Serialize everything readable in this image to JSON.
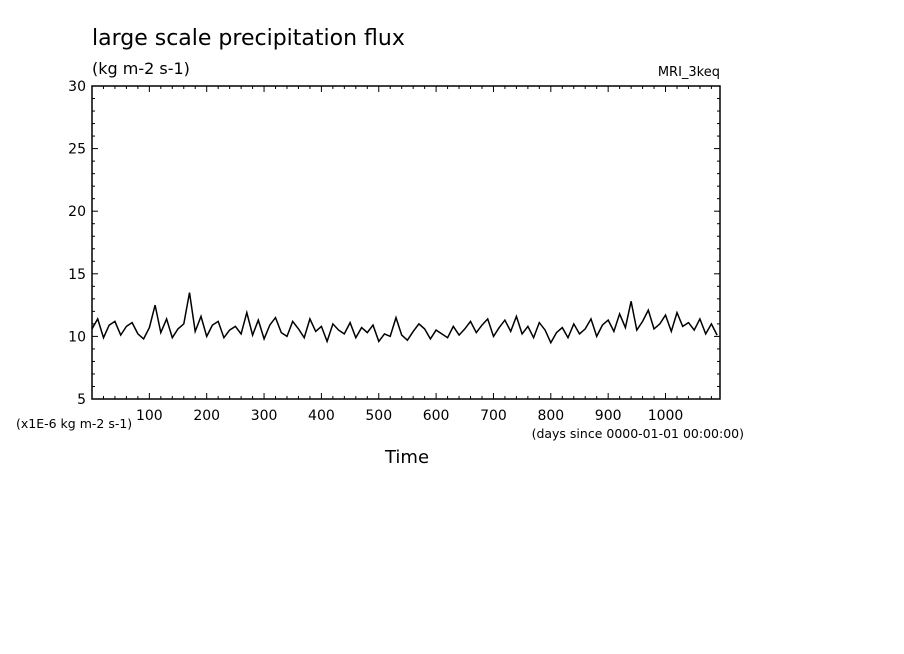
{
  "chart_data": {
    "type": "line",
    "title": "large scale precipitation flux",
    "subtitle": "(kg m-2 s-1)",
    "model": "MRI_3keq",
    "xlabel": "Time",
    "x_units": "(days since 0000-01-01 00:00:00)",
    "y_scale_note": "(x1E-6 kg m-2 s-1)",
    "xlim": [
      0,
      1095
    ],
    "ylim": [
      5,
      30
    ],
    "x_ticks": [
      100,
      200,
      300,
      400,
      500,
      600,
      700,
      800,
      900,
      1000
    ],
    "x_tick_labels": [
      "100",
      "200",
      "300",
      "400",
      "500",
      "600",
      "700",
      "800",
      "900",
      "1000"
    ],
    "y_ticks": [
      5,
      10,
      15,
      20,
      25,
      30
    ],
    "y_tick_labels": [
      "5",
      "10",
      "15",
      "20",
      "25",
      "30"
    ],
    "grid": false,
    "line_color": "#000000",
    "series": [
      {
        "x": [
          0,
          10,
          20,
          30,
          40,
          50,
          60,
          70,
          80,
          90,
          100,
          110,
          120,
          130,
          140,
          150,
          160,
          170,
          180,
          190,
          200,
          210,
          220,
          230,
          240,
          250,
          260,
          270,
          280,
          290,
          300,
          310,
          320,
          330,
          340,
          350,
          360,
          370,
          380,
          390,
          400,
          410,
          420,
          430,
          440,
          450,
          460,
          470,
          480,
          490,
          500,
          510,
          520,
          530,
          540,
          550,
          560,
          570,
          580,
          590,
          600,
          610,
          620,
          630,
          640,
          650,
          660,
          670,
          680,
          690,
          700,
          710,
          720,
          730,
          740,
          750,
          760,
          770,
          780,
          790,
          800,
          810,
          820,
          830,
          840,
          850,
          860,
          870,
          880,
          890,
          900,
          910,
          920,
          930,
          940,
          950,
          960,
          970,
          980,
          990,
          1000,
          1010,
          1020,
          1030,
          1040,
          1050,
          1060,
          1070,
          1080,
          1090
        ],
        "y": [
          10.6,
          11.4,
          9.9,
          10.9,
          11.2,
          10.1,
          10.8,
          11.1,
          10.2,
          9.8,
          10.7,
          12.5,
          10.3,
          11.4,
          9.9,
          10.6,
          11.0,
          13.5,
          10.4,
          11.6,
          10.0,
          10.9,
          11.2,
          9.9,
          10.5,
          10.8,
          10.2,
          11.9,
          10.1,
          11.3,
          9.8,
          10.9,
          11.5,
          10.3,
          10.0,
          11.2,
          10.6,
          9.9,
          11.4,
          10.4,
          10.8,
          9.6,
          11.0,
          10.5,
          10.2,
          11.1,
          9.9,
          10.7,
          10.3,
          10.9,
          9.6,
          10.2,
          10.0,
          11.5,
          10.1,
          9.7,
          10.4,
          11.0,
          10.6,
          9.8,
          10.5,
          10.2,
          9.9,
          10.8,
          10.1,
          10.6,
          11.2,
          10.3,
          10.9,
          11.4,
          10.0,
          10.7,
          11.3,
          10.4,
          11.6,
          10.2,
          10.8,
          9.9,
          11.1,
          10.5,
          9.5,
          10.3,
          10.7,
          9.9,
          11.0,
          10.2,
          10.6,
          11.4,
          10.0,
          10.9,
          11.3,
          10.4,
          11.8,
          10.7,
          12.8,
          10.5,
          11.2,
          12.1,
          10.6,
          11.0,
          11.7,
          10.4,
          11.9,
          10.8,
          11.1,
          10.5,
          11.4,
          10.2,
          11.0,
          10.1
        ]
      }
    ]
  }
}
